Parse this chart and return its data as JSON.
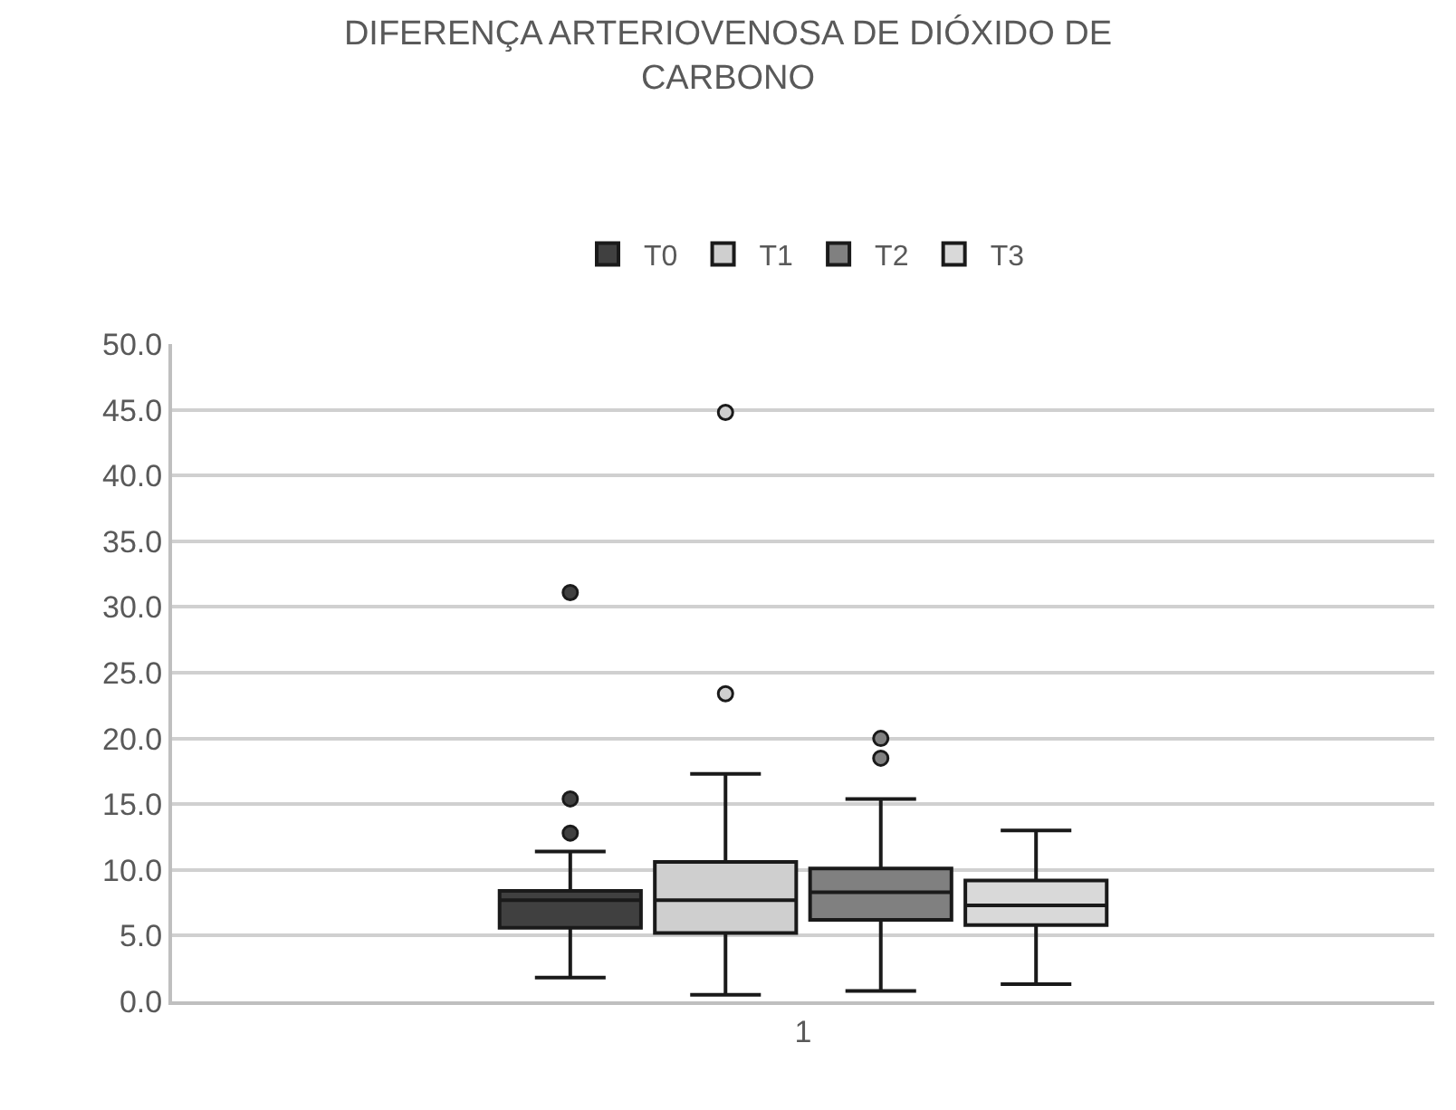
{
  "chart_data": {
    "type": "box",
    "title": "DIFERENÇA ARTERIOVENOSA DE DIÓXIDO DE CARBONO",
    "categories": [
      "1"
    ],
    "legend": "top",
    "grid": "y",
    "ylim": [
      0,
      50
    ],
    "yticks": [
      {
        "value": 0,
        "label": "0.0"
      },
      {
        "value": 5,
        "label": "5.0"
      },
      {
        "value": 10,
        "label": "10.0"
      },
      {
        "value": 15,
        "label": "15.0"
      },
      {
        "value": 20,
        "label": "20.0"
      },
      {
        "value": 25,
        "label": "25.0"
      },
      {
        "value": 30,
        "label": "30.0"
      },
      {
        "value": 35,
        "label": "35.0"
      },
      {
        "value": 40,
        "label": "40.0"
      },
      {
        "value": 45,
        "label": "45.0"
      },
      {
        "value": 50,
        "label": "50.0"
      }
    ],
    "series": [
      {
        "name": "T0",
        "color": "#404040",
        "boxes": [
          {
            "low": 1.8,
            "q1": 5.6,
            "median": 7.7,
            "q3": 8.4,
            "high": 11.4,
            "outliers": [
              12.8,
              15.4,
              31.1
            ]
          }
        ]
      },
      {
        "name": "T1",
        "color": "#cfcfcf",
        "boxes": [
          {
            "low": 0.5,
            "q1": 5.2,
            "median": 7.7,
            "q3": 10.6,
            "high": 17.3,
            "outliers": [
              23.4,
              44.8
            ]
          }
        ]
      },
      {
        "name": "T2",
        "color": "#808080",
        "boxes": [
          {
            "low": 0.8,
            "q1": 6.2,
            "median": 8.3,
            "q3": 10.1,
            "high": 15.4,
            "outliers": [
              18.5,
              20.0
            ]
          }
        ]
      },
      {
        "name": "T3",
        "color": "#d9d9d9",
        "boxes": [
          {
            "low": 1.3,
            "q1": 5.8,
            "median": 7.3,
            "q3": 9.2,
            "high": 13.0
          }
        ]
      }
    ]
  }
}
